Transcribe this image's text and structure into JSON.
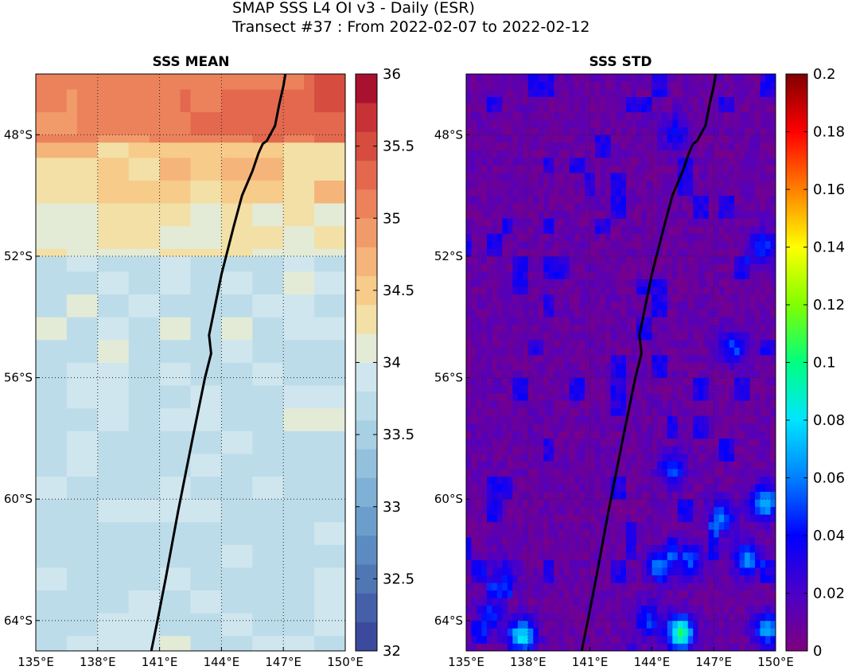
{
  "figure": {
    "suptitle_line1": "SMAP SSS L4 OI v3 - Daily (ESR)",
    "suptitle_line2": "Transect #37 : From 2022-02-07 to 2022-02-12"
  },
  "chart_data": [
    {
      "type": "heatmap",
      "title": "SSS MEAN",
      "x_range": [
        135,
        150
      ],
      "y_range": [
        -65,
        -46
      ],
      "x_ticks": [
        135,
        138,
        141,
        144,
        147,
        150
      ],
      "x_tick_labels": [
        "135°E",
        "138°E",
        "141°E",
        "144°E",
        "147°E",
        "150°E"
      ],
      "y_ticks": [
        -48,
        -52,
        -56,
        -60,
        -64
      ],
      "y_tick_labels": [
        "48°S",
        "52°S",
        "56°S",
        "60°S",
        "64°S"
      ],
      "grid": true,
      "colorbar": {
        "range": [
          32,
          36
        ],
        "ticks": [
          32,
          32.5,
          33,
          33.5,
          34,
          34.5,
          35,
          35.5,
          36
        ],
        "tick_labels": [
          "32",
          "32.5",
          "33",
          "33.5",
          "34",
          "34.5",
          "35",
          "35.5",
          "36"
        ],
        "levels": 20,
        "colors": [
          "#3b4a9c",
          "#4560a8",
          "#4f77b4",
          "#5b8bc0",
          "#6b9ecb",
          "#7fb0d5",
          "#93c1dd",
          "#a8d0e3",
          "#bddcea",
          "#cfe6ee",
          "#e3ebd6",
          "#f2e0a6",
          "#f7cb8a",
          "#f5b47a",
          "#f29b6a",
          "#ec825c",
          "#e3684e",
          "#d64d40",
          "#c63236",
          "#a8122f"
        ]
      },
      "approx_field": [
        {
          "lat_range": [
            -48.3,
            -46
          ],
          "value": 35.0
        },
        {
          "lat_range": [
            -50.2,
            -48.3
          ],
          "value": 34.5
        },
        {
          "lat_range": [
            -52.0,
            -50.2
          ],
          "value": 34.2
        },
        {
          "lat_range": [
            -65,
            -52.0
          ],
          "value": 33.9
        }
      ],
      "transect": {
        "lon": [
          140.6,
          140.9,
          141.3,
          141.9,
          142.6,
          143.2,
          143.5,
          143.4,
          144.0,
          144.6,
          145.0,
          145.5,
          145.8,
          146.0,
          146.2,
          146.6,
          146.8,
          147.0,
          147.1
        ],
        "lat": [
          -65,
          -64.0,
          -62.6,
          -60.4,
          -58.0,
          -56.0,
          -55.2,
          -54.6,
          -52.6,
          -51.0,
          -50.0,
          -49.2,
          -48.6,
          -48.3,
          -48.2,
          -47.7,
          -47.0,
          -46.4,
          -46
        ]
      }
    },
    {
      "type": "heatmap",
      "title": "SSS STD",
      "x_range": [
        135,
        150
      ],
      "y_range": [
        -65,
        -46
      ],
      "x_ticks": [
        135,
        138,
        141,
        144,
        147,
        150
      ],
      "x_tick_labels": [
        "135°E",
        "138°E",
        "141°E",
        "144°E",
        "147°E",
        "150°E"
      ],
      "y_ticks": [
        -48,
        -52,
        -56,
        -60,
        -64
      ],
      "y_tick_labels": [
        "48°S",
        "52°S",
        "56°S",
        "60°S",
        "64°S"
      ],
      "grid": true,
      "colorbar": {
        "range": [
          0,
          0.2
        ],
        "ticks": [
          0,
          0.02,
          0.04,
          0.06,
          0.08,
          0.1,
          0.12,
          0.14,
          0.16,
          0.18,
          0.2
        ],
        "tick_labels": [
          "0",
          "0.02",
          "0.04",
          "0.06",
          "0.08",
          "0.1",
          "0.12",
          "0.14",
          "0.16",
          "0.18",
          "0.2"
        ],
        "colors": [
          "#7f007f",
          "#4b00c8",
          "#0000ff",
          "#0080ff",
          "#00e5ff",
          "#00ff80",
          "#80ff00",
          "#ffff00",
          "#ff8000",
          "#ff0000",
          "#800000"
        ]
      },
      "background_value": 0.01,
      "blobs": [
        {
          "lon": 137.7,
          "lat": -64.5,
          "value": 0.07
        },
        {
          "lon": 145.4,
          "lat": -64.4,
          "value": 0.09
        },
        {
          "lon": 149.6,
          "lat": -64.3,
          "value": 0.06
        },
        {
          "lon": 149.5,
          "lat": -60.1,
          "value": 0.065
        },
        {
          "lon": 148.6,
          "lat": -62.0,
          "value": 0.05
        },
        {
          "lon": 145.8,
          "lat": -62.0,
          "value": 0.04
        },
        {
          "lon": 147.4,
          "lat": -60.6,
          "value": 0.045
        },
        {
          "lon": 145.0,
          "lat": -59.0,
          "value": 0.04
        },
        {
          "lon": 148.0,
          "lat": -55.0,
          "value": 0.04
        },
        {
          "lon": 149.4,
          "lat": -51.7,
          "value": 0.04
        },
        {
          "lon": 145.1,
          "lat": -47.9,
          "value": 0.03
        },
        {
          "lon": 144.4,
          "lat": -62.2,
          "value": 0.05
        },
        {
          "lon": 143.8,
          "lat": -64.0,
          "value": 0.04
        },
        {
          "lon": 136.8,
          "lat": -62.5,
          "value": 0.03
        },
        {
          "lon": 136.2,
          "lat": -63.8,
          "value": 0.035
        }
      ],
      "transect": {
        "lon": [
          140.6,
          140.9,
          141.3,
          141.9,
          142.6,
          143.2,
          143.5,
          143.4,
          144.0,
          144.6,
          145.0,
          145.5,
          145.8,
          146.0,
          146.2,
          146.6,
          146.8,
          147.0,
          147.1
        ],
        "lat": [
          -65,
          -64.0,
          -62.6,
          -60.4,
          -58.0,
          -56.0,
          -55.2,
          -54.6,
          -52.6,
          -51.0,
          -50.0,
          -49.2,
          -48.6,
          -48.3,
          -48.2,
          -47.7,
          -47.0,
          -46.4,
          -46
        ]
      }
    }
  ]
}
